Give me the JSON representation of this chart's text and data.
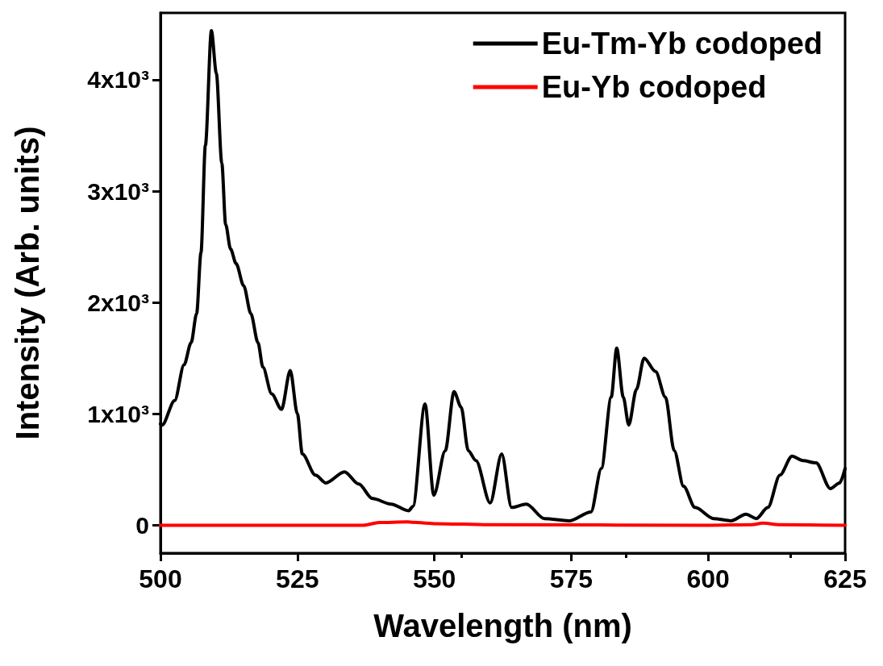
{
  "chart_data": {
    "type": "line",
    "xlabel": "Wavelength (nm)",
    "ylabel": "Intensity (Arb. units)",
    "xlim": [
      500,
      625
    ],
    "xticks": [
      500,
      525,
      550,
      575,
      600,
      625
    ],
    "ylim": [
      -250,
      4600
    ],
    "yticks": [
      0,
      {
        "value": 1000,
        "label": "1x10³"
      },
      {
        "value": 2000,
        "label": "2x10³"
      },
      {
        "value": 3000,
        "label": "3x10³"
      },
      {
        "value": 4000,
        "label": "4x10³"
      }
    ],
    "grid": false,
    "legend": "top right",
    "marker": "none",
    "line_style": "solid",
    "series": [
      {
        "name": "Eu-Tm-Yb codoped",
        "color": "#000000",
        "x": [
          500,
          500.3,
          502.6,
          504.3,
          505.6,
          506.6,
          507.4,
          508.2,
          509.3,
          510.2,
          511.2,
          511.9,
          512.8,
          513.8,
          515.2,
          516.5,
          517.8,
          518.7,
          520.3,
          522.1,
          523.7,
          525,
          525.9,
          528.3,
          530.2,
          533.6,
          536.2,
          538.7,
          542.1,
          545.3,
          546.1,
          548.3,
          549.9,
          552,
          553.6,
          554.9,
          556.2,
          557.6,
          560.2,
          562.3,
          564.1,
          566.8,
          570.1,
          574.6,
          578.6,
          580.5,
          582.3,
          583.3,
          584.5,
          585.5,
          586.9,
          588.3,
          590.4,
          592.2,
          593.8,
          595.5,
          597.6,
          601,
          604.2,
          606.9,
          608.8,
          610.9,
          613.1,
          615.3,
          617.3,
          619.7,
          622.3,
          624,
          625
        ],
        "values": [
          910,
          900,
          1120,
          1440,
          1640,
          1900,
          2450,
          3410,
          4440,
          4060,
          3250,
          2700,
          2480,
          2350,
          2150,
          1900,
          1640,
          1420,
          1180,
          1040,
          1390,
          1000,
          640,
          450,
          380,
          480,
          370,
          240,
          190,
          130,
          170,
          1090,
          270,
          670,
          1200,
          1060,
          670,
          580,
          200,
          640,
          160,
          190,
          60,
          40,
          120,
          510,
          1150,
          1590,
          1150,
          900,
          1220,
          1500,
          1380,
          1150,
          670,
          350,
          160,
          60,
          40,
          100,
          60,
          160,
          450,
          620,
          580,
          560,
          330,
          380,
          510
        ]
      },
      {
        "name": "Eu-Yb codoped",
        "color": "#ff0000",
        "x": [
          500,
          537,
          540,
          545,
          550,
          560,
          600,
          608,
          610,
          613,
          625
        ],
        "values": [
          0,
          0,
          25,
          30,
          15,
          5,
          0,
          5,
          20,
          5,
          0
        ]
      }
    ]
  }
}
